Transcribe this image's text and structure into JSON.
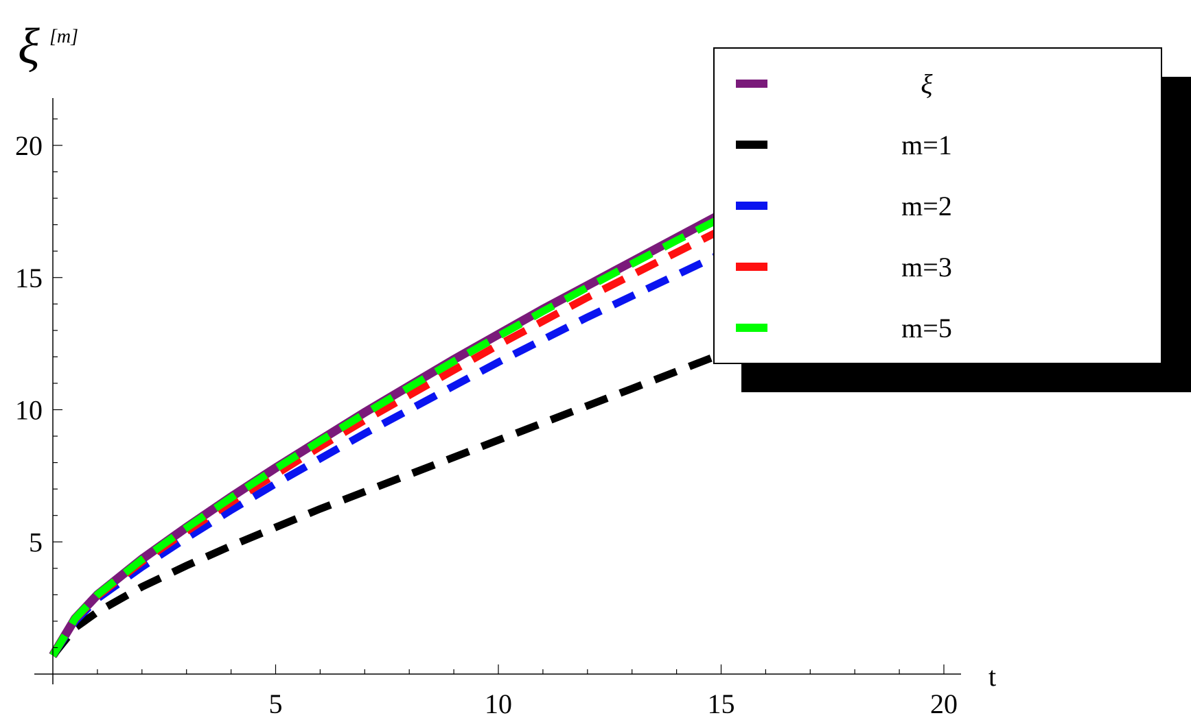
{
  "chart_data": {
    "type": "line",
    "title": "",
    "xlabel": "t",
    "ylabel": "ξ",
    "ylabel_sup": "[m]",
    "xlim": [
      0,
      20
    ],
    "ylim": [
      0,
      20
    ],
    "x_ticks": [
      5,
      10,
      15,
      20
    ],
    "y_ticks": [
      5,
      10,
      15,
      20
    ],
    "grid": false,
    "legend_position": "top-right",
    "series": [
      {
        "name": "ξ",
        "style": "solid",
        "color": "#7a1a7a",
        "x": [
          0,
          0.5,
          1,
          2,
          3,
          4,
          5,
          6,
          7,
          8,
          9,
          10,
          11,
          12,
          13,
          14,
          15
        ],
        "y": [
          0.7,
          2.1,
          3.0,
          4.35,
          5.55,
          6.7,
          7.8,
          8.85,
          9.9,
          10.9,
          11.9,
          12.85,
          13.8,
          14.7,
          15.6,
          16.5,
          17.4
        ]
      },
      {
        "name": "m=1",
        "style": "dashed",
        "color": "#000000",
        "x": [
          0,
          0.5,
          1,
          2,
          3,
          4,
          5,
          6,
          7,
          8,
          9,
          10,
          11,
          12,
          13,
          14,
          15
        ],
        "y": [
          0.7,
          1.75,
          2.35,
          3.3,
          4.1,
          4.85,
          5.55,
          6.25,
          6.9,
          7.55,
          8.2,
          8.85,
          9.5,
          10.15,
          10.8,
          11.45,
          12.1
        ]
      },
      {
        "name": "m=2",
        "style": "dashed",
        "color": "#0a14f0",
        "x": [
          0,
          0.5,
          1,
          2,
          3,
          4,
          5,
          6,
          7,
          8,
          9,
          10,
          11,
          12,
          13,
          14,
          15
        ],
        "y": [
          0.7,
          2.0,
          2.85,
          4.05,
          5.15,
          6.2,
          7.2,
          8.15,
          9.1,
          10.0,
          10.9,
          11.8,
          12.65,
          13.5,
          14.3,
          15.1,
          15.9
        ]
      },
      {
        "name": "m=3",
        "style": "dashed",
        "color": "#ff1010",
        "x": [
          0,
          0.5,
          1,
          2,
          3,
          4,
          5,
          6,
          7,
          8,
          9,
          10,
          11,
          12,
          13,
          14,
          15
        ],
        "y": [
          0.7,
          2.08,
          2.95,
          4.25,
          5.4,
          6.5,
          7.55,
          8.6,
          9.6,
          10.55,
          11.5,
          12.45,
          13.35,
          14.25,
          15.1,
          15.95,
          16.8
        ]
      },
      {
        "name": "m=5",
        "style": "dashed",
        "color": "#00ff00",
        "x": [
          0,
          0.5,
          1,
          2,
          3,
          4,
          5,
          6,
          7,
          8,
          9,
          10,
          11,
          12,
          13,
          14,
          15
        ],
        "y": [
          0.7,
          2.1,
          3.0,
          4.33,
          5.53,
          6.67,
          7.77,
          8.82,
          9.85,
          10.85,
          11.83,
          12.78,
          13.72,
          14.63,
          15.52,
          16.4,
          17.25
        ]
      }
    ]
  }
}
